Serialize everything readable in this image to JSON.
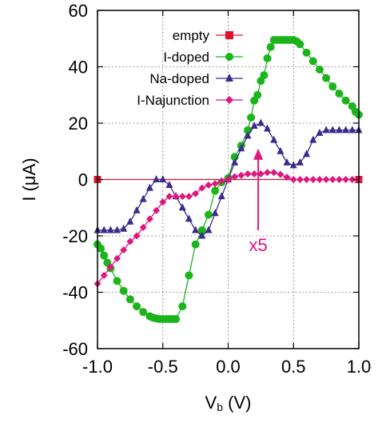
{
  "chart_data": {
    "type": "line",
    "xlabel_main": "V",
    "xlabel_sub": "b",
    "xlabel_unit": " (V)",
    "ylabel": "I (μA)",
    "xlim": [
      -1.0,
      1.0
    ],
    "ylim": [
      -60,
      60
    ],
    "x_ticks": [
      -1.0,
      -0.5,
      0.0,
      0.5,
      1.0
    ],
    "x_tick_labels": [
      "-1.0",
      "-0.5",
      "0.0",
      "0.5",
      "1.0"
    ],
    "y_ticks": [
      -60,
      -40,
      -20,
      0,
      20,
      40,
      60
    ],
    "y_tick_labels": [
      "-60",
      "-40",
      "-20",
      "0",
      "20",
      "40",
      "60"
    ],
    "grid": true,
    "grid_style": "dotted",
    "legend_position": "top-left",
    "annotation": {
      "text": "x5",
      "x": 0.23,
      "y_from": -18,
      "y_to": 11,
      "color": "#e0157e"
    },
    "series": [
      {
        "name": "empty",
        "color": "#e0122c",
        "marker": "square",
        "points": [
          [
            -1.0,
            0
          ],
          [
            1.0,
            0
          ]
        ]
      },
      {
        "name": "I-doped",
        "color": "#1bb51b",
        "marker": "circle",
        "points": [
          [
            -1.0,
            -23
          ],
          [
            -0.975,
            -24.5
          ],
          [
            -0.95,
            -27
          ],
          [
            -0.925,
            -29.5
          ],
          [
            -0.9,
            -31.5
          ],
          [
            -0.85,
            -36
          ],
          [
            -0.8,
            -39.5
          ],
          [
            -0.75,
            -42.5
          ],
          [
            -0.7,
            -45
          ],
          [
            -0.65,
            -47
          ],
          [
            -0.6,
            -48.5
          ],
          [
            -0.575,
            -49
          ],
          [
            -0.55,
            -49.3
          ],
          [
            -0.525,
            -49.5
          ],
          [
            -0.5,
            -49.5
          ],
          [
            -0.475,
            -49.5
          ],
          [
            -0.45,
            -49.5
          ],
          [
            -0.425,
            -49.5
          ],
          [
            -0.4,
            -49.5
          ],
          [
            -0.35,
            -45
          ],
          [
            -0.3,
            -34
          ],
          [
            -0.25,
            -23
          ],
          [
            -0.2,
            -18
          ],
          [
            -0.15,
            -12.5
          ],
          [
            -0.1,
            -4
          ],
          [
            -0.05,
            -1
          ],
          [
            0.0,
            0.5
          ],
          [
            0.05,
            8
          ],
          [
            0.1,
            12
          ],
          [
            0.15,
            17.5
          ],
          [
            0.175,
            22
          ],
          [
            0.2,
            28
          ],
          [
            0.225,
            30
          ],
          [
            0.25,
            35
          ],
          [
            0.275,
            37
          ],
          [
            0.3,
            43
          ],
          [
            0.325,
            47
          ],
          [
            0.35,
            49.5
          ],
          [
            0.375,
            49.5
          ],
          [
            0.4,
            49.5
          ],
          [
            0.425,
            49.5
          ],
          [
            0.45,
            49.5
          ],
          [
            0.475,
            49.5
          ],
          [
            0.5,
            49.5
          ],
          [
            0.525,
            49
          ],
          [
            0.55,
            48
          ],
          [
            0.6,
            45
          ],
          [
            0.65,
            42
          ],
          [
            0.7,
            39
          ],
          [
            0.75,
            36
          ],
          [
            0.8,
            33
          ],
          [
            0.85,
            30.5
          ],
          [
            0.9,
            28
          ],
          [
            0.95,
            26
          ],
          [
            0.975,
            24
          ],
          [
            1.0,
            23
          ]
        ]
      },
      {
        "name": "Na-doped",
        "color": "#3a2b8c",
        "marker": "triangle",
        "points": [
          [
            -1.0,
            -18
          ],
          [
            -0.95,
            -18
          ],
          [
            -0.9,
            -18
          ],
          [
            -0.85,
            -18
          ],
          [
            -0.8,
            -17.5
          ],
          [
            -0.75,
            -15
          ],
          [
            -0.7,
            -11
          ],
          [
            -0.65,
            -7
          ],
          [
            -0.6,
            -3
          ],
          [
            -0.55,
            0
          ],
          [
            -0.5,
            0
          ],
          [
            -0.45,
            -2
          ],
          [
            -0.4,
            -6
          ],
          [
            -0.35,
            -10
          ],
          [
            -0.3,
            -14
          ],
          [
            -0.25,
            -18
          ],
          [
            -0.2,
            -20
          ],
          [
            -0.15,
            -18
          ],
          [
            -0.1,
            -12
          ],
          [
            -0.05,
            -6
          ],
          [
            0.0,
            0
          ],
          [
            0.05,
            6
          ],
          [
            0.1,
            11
          ],
          [
            0.15,
            15.5
          ],
          [
            0.2,
            19
          ],
          [
            0.25,
            20
          ],
          [
            0.3,
            18
          ],
          [
            0.35,
            14
          ],
          [
            0.4,
            10
          ],
          [
            0.45,
            6
          ],
          [
            0.5,
            5
          ],
          [
            0.55,
            6
          ],
          [
            0.6,
            9
          ],
          [
            0.65,
            14
          ],
          [
            0.7,
            16.5
          ],
          [
            0.75,
            17.5
          ],
          [
            0.8,
            17.5
          ],
          [
            0.85,
            17.5
          ],
          [
            0.9,
            17.5
          ],
          [
            0.95,
            17.5
          ],
          [
            1.0,
            17.5
          ]
        ]
      },
      {
        "name": "I-Najunction",
        "color": "#e0157e",
        "marker": "diamond",
        "points": [
          [
            -1.0,
            -37
          ],
          [
            -0.95,
            -34
          ],
          [
            -0.9,
            -31
          ],
          [
            -0.85,
            -28
          ],
          [
            -0.8,
            -25
          ],
          [
            -0.75,
            -22
          ],
          [
            -0.7,
            -20
          ],
          [
            -0.65,
            -17
          ],
          [
            -0.6,
            -14
          ],
          [
            -0.55,
            -11
          ],
          [
            -0.5,
            -8
          ],
          [
            -0.45,
            -6
          ],
          [
            -0.4,
            -6
          ],
          [
            -0.35,
            -6
          ],
          [
            -0.3,
            -6
          ],
          [
            -0.25,
            -5
          ],
          [
            -0.2,
            -3
          ],
          [
            -0.15,
            -2
          ],
          [
            -0.1,
            -1.5
          ],
          [
            -0.05,
            -0.5
          ],
          [
            0.0,
            0
          ],
          [
            0.05,
            1
          ],
          [
            0.1,
            1.5
          ],
          [
            0.15,
            2
          ],
          [
            0.2,
            2
          ],
          [
            0.25,
            2
          ],
          [
            0.3,
            2.5
          ],
          [
            0.35,
            2.5
          ],
          [
            0.4,
            1.8
          ],
          [
            0.45,
            0.8
          ],
          [
            0.5,
            0
          ],
          [
            0.55,
            0
          ],
          [
            0.6,
            0
          ],
          [
            0.65,
            0
          ],
          [
            0.7,
            0
          ],
          [
            0.75,
            0
          ],
          [
            0.8,
            0
          ],
          [
            0.85,
            0
          ],
          [
            0.9,
            0
          ],
          [
            0.95,
            0
          ],
          [
            1.0,
            0
          ]
        ]
      }
    ]
  }
}
